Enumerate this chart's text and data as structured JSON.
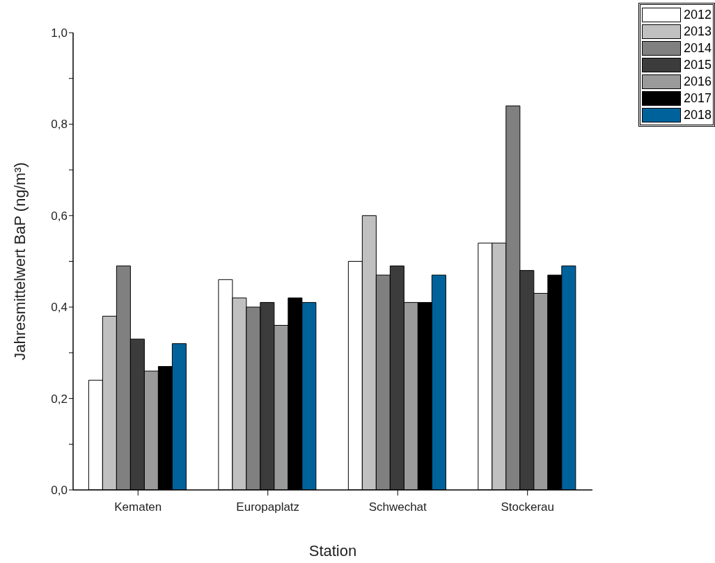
{
  "chart_data": {
    "type": "bar",
    "xlabel": "Station",
    "ylabel": "Jahresmittelwert BaP (ng/m³)",
    "categories": [
      "Kematen",
      "Europaplatz",
      "Schwechat",
      "Stockerau"
    ],
    "series": [
      {
        "name": "2012",
        "color": "#ffffff",
        "values": [
          0.24,
          0.46,
          0.5,
          0.54
        ]
      },
      {
        "name": "2013",
        "color": "#c0c0c0",
        "values": [
          0.38,
          0.42,
          0.6,
          0.54
        ]
      },
      {
        "name": "2014",
        "color": "#808080",
        "values": [
          0.49,
          0.4,
          0.47,
          0.84
        ]
      },
      {
        "name": "2015",
        "color": "#3c3c3c",
        "values": [
          0.33,
          0.41,
          0.49,
          0.48
        ]
      },
      {
        "name": "2016",
        "color": "#9a9a9a",
        "values": [
          0.26,
          0.36,
          0.41,
          0.43
        ]
      },
      {
        "name": "2017",
        "color": "#000000",
        "values": [
          0.27,
          0.42,
          0.41,
          0.47
        ]
      },
      {
        "name": "2018",
        "color": "#00629b",
        "values": [
          0.32,
          0.41,
          0.47,
          0.49
        ]
      }
    ],
    "ylim": [
      0,
      1
    ],
    "yticks": [
      {
        "value": 0,
        "label": "0,0"
      },
      {
        "value": 0.1,
        "label": null
      },
      {
        "value": 0.2,
        "label": "0,2"
      },
      {
        "value": 0.3,
        "label": null
      },
      {
        "value": 0.4,
        "label": "0,4"
      },
      {
        "value": 0.5,
        "label": null
      },
      {
        "value": 0.6,
        "label": "0,6"
      },
      {
        "value": 0.7,
        "label": null
      },
      {
        "value": 0.8,
        "label": "0,8"
      },
      {
        "value": 0.9,
        "label": null
      },
      {
        "value": 1,
        "label": "1,0"
      }
    ],
    "grid": false,
    "legend": "top right"
  }
}
